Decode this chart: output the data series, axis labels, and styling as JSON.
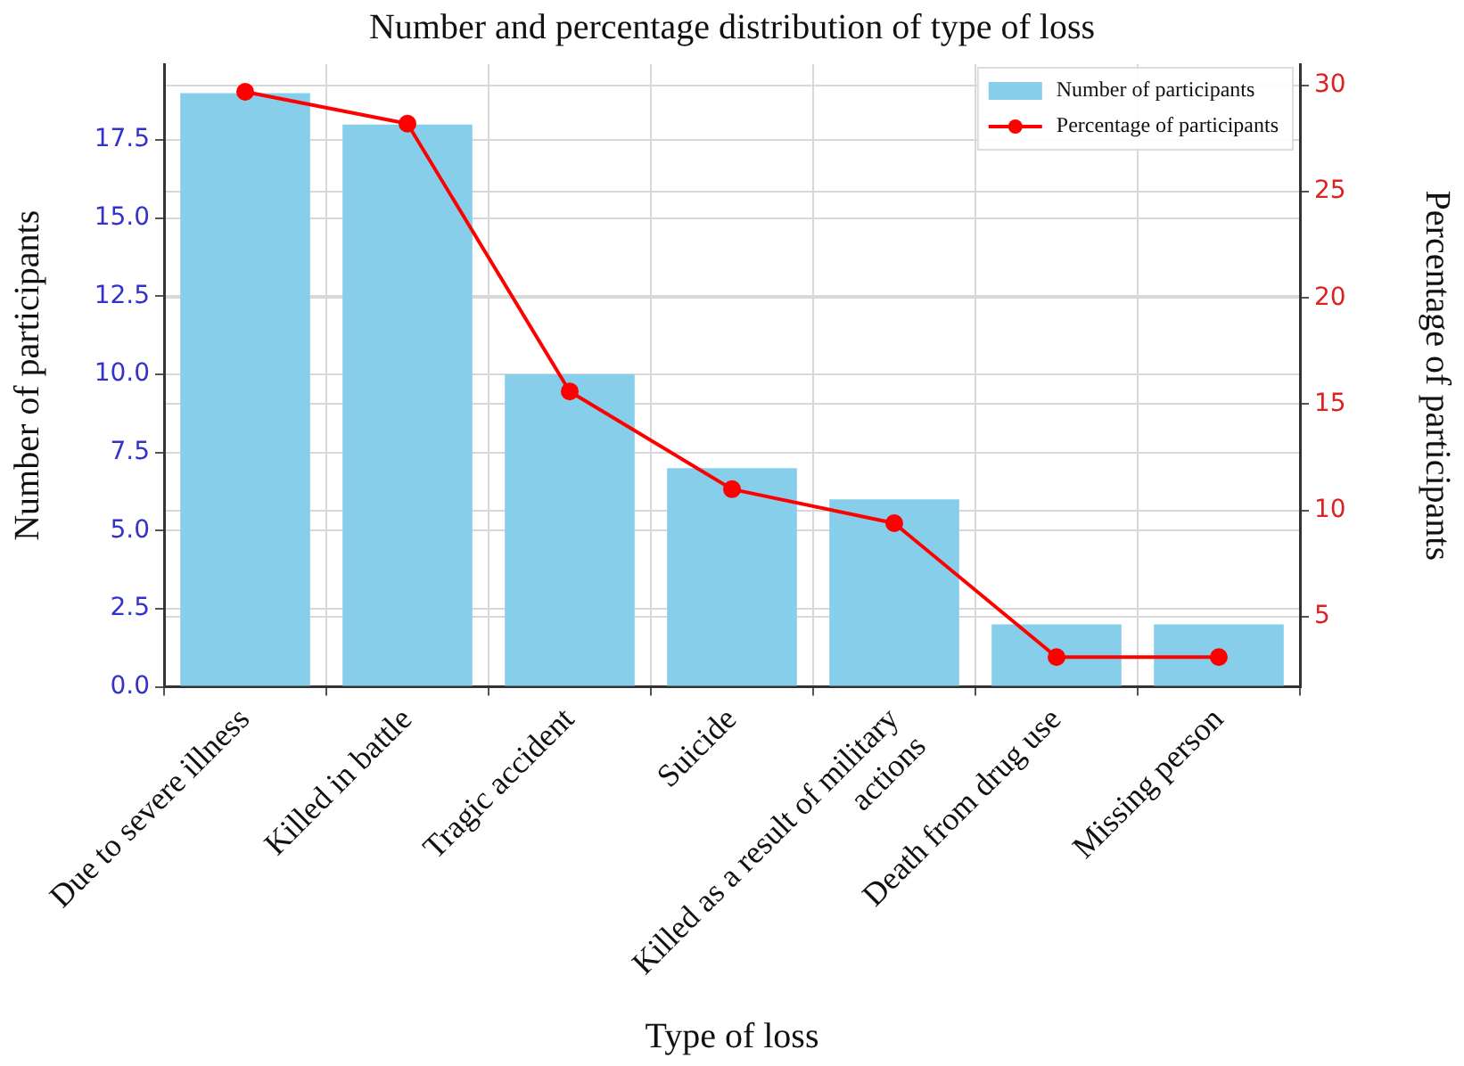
{
  "chart_data": {
    "type": "bar",
    "title": "Number and percentage distribution of type of loss",
    "xlabel": "Type of loss",
    "ylabel": "Number of participants",
    "y2label": "Percentage of participants",
    "categories": [
      "Due to severe illness",
      "Killed in battle",
      "Tragic accident",
      "Suicide",
      "Killed as a result of military actions",
      "Death from drug use",
      "Missing person"
    ],
    "series": [
      {
        "name": "Number of participants",
        "color": "#87ceeb",
        "values": [
          19,
          18,
          10,
          7,
          6,
          2,
          2
        ]
      },
      {
        "name": "Percentage of participants",
        "type": "line",
        "axis": "y2",
        "color": "#ff0000",
        "values": [
          29.7,
          28.2,
          15.6,
          11.0,
          9.4,
          3.1,
          3.1
        ]
      }
    ],
    "ylim": [
      0,
      19.93
    ],
    "yticks": [
      {
        "value": 0,
        "label": "0.0"
      },
      {
        "value": 2.5,
        "label": "2.5"
      },
      {
        "value": 5,
        "label": "5.0"
      },
      {
        "value": 7.5,
        "label": "7.5"
      },
      {
        "value": 10,
        "label": "10.0"
      },
      {
        "value": 12.5,
        "label": "12.5"
      },
      {
        "value": 15,
        "label": "15.0"
      },
      {
        "value": 17.5,
        "label": "17.5"
      }
    ],
    "y2lim": [
      1.7,
      31.0
    ],
    "y2ticks": [
      5,
      10,
      15,
      20,
      25,
      30
    ],
    "grid": true,
    "legend": "top right",
    "marker": "circle",
    "line_style": "solid"
  }
}
